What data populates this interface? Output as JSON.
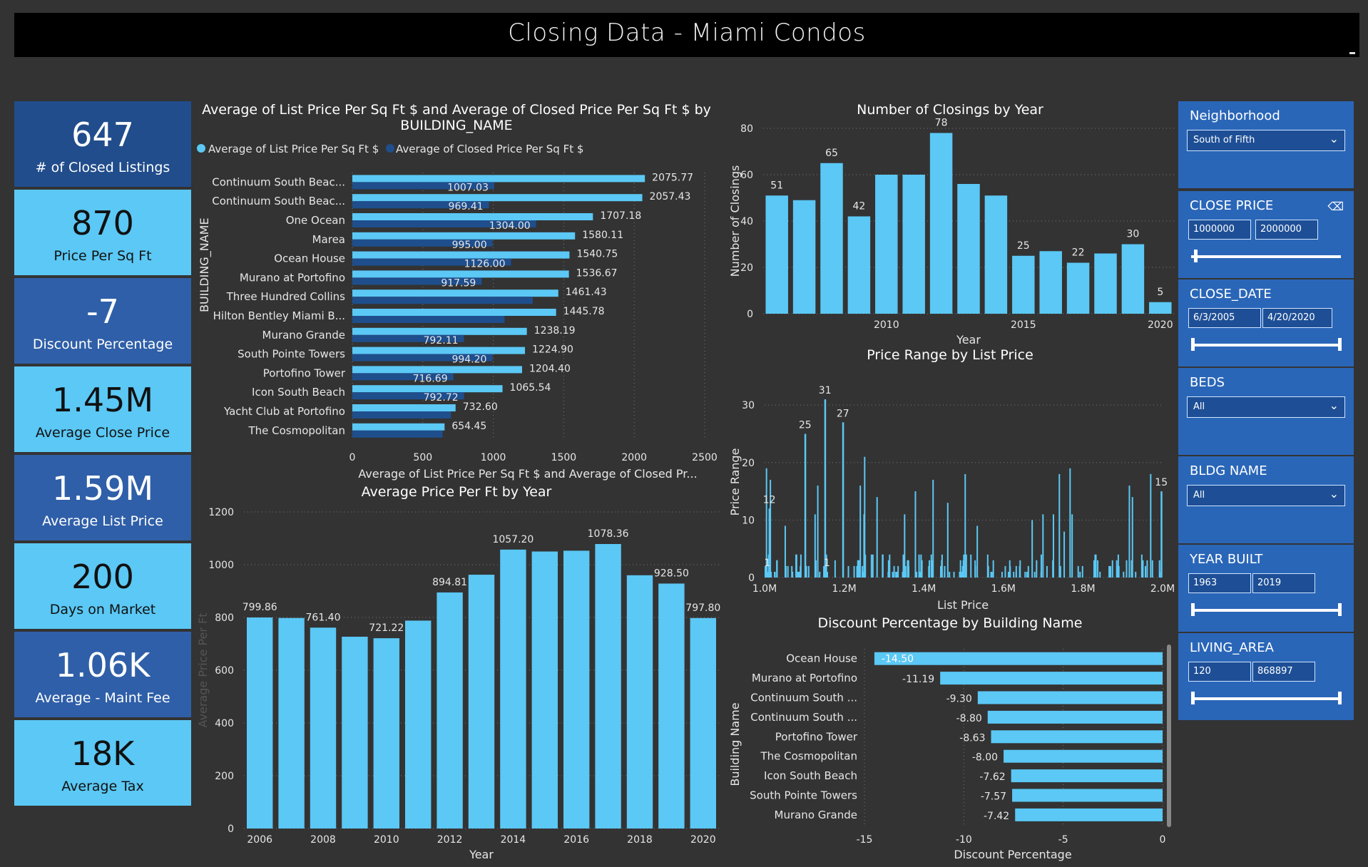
{
  "title": "Closing Data - Miami Condos",
  "kpis": [
    {
      "value": "647",
      "label": "# of Closed Listings",
      "color": "#214d8c"
    },
    {
      "value": "870",
      "label": "Price Per Sq Ft",
      "color": "#5bc8f5"
    },
    {
      "value": "-7",
      "label": "Discount Percentage",
      "color": "#2f5fa8"
    },
    {
      "value": "1.45M",
      "label": "Average Close Price",
      "color": "#5bc8f5"
    },
    {
      "value": "1.59M",
      "label": "Average List Price",
      "color": "#2f5fa8"
    },
    {
      "value": "200",
      "label": "Days on Market",
      "color": "#5bc8f5"
    },
    {
      "value": "1.06K",
      "label": "Average - Maint Fee",
      "color": "#2f5fa8"
    },
    {
      "value": "18K",
      "label": "Average Tax",
      "color": "#5bc8f5"
    }
  ],
  "slicers": {
    "neighborhood": {
      "title": "Neighborhood",
      "value": "South of Fifth"
    },
    "close_price": {
      "title": "CLOSE PRICE",
      "min": "1000000",
      "max": "2000000"
    },
    "close_date": {
      "title": "CLOSE_DATE",
      "min": "6/3/2005",
      "max": "4/20/2020"
    },
    "beds": {
      "title": "BEDS",
      "value": "All"
    },
    "bldg_name": {
      "title": "BLDG NAME",
      "value": "All"
    },
    "year_built": {
      "title": "YEAR BUILT",
      "min": "1963",
      "max": "2019"
    },
    "living_area": {
      "title": "LIVING_AREA",
      "min": "120",
      "max": "868897"
    }
  },
  "chart_data": [
    {
      "id": "price_per_sqft_by_building",
      "type": "bar",
      "orientation": "horizontal",
      "title": "Average of List Price Per Sq Ft $ and Average of Closed Price Per Sq Ft $ by BUILDING_NAME",
      "xlabel": "Average of List Price Per Sq Ft $ and Average of Closed Pr...",
      "ylabel": "BUILDING_NAME",
      "xlim": [
        0,
        2500
      ],
      "xticks": [
        "0",
        "500",
        "1000",
        "1500",
        "2000",
        "2500"
      ],
      "categories": [
        "Continuum South Beac...",
        "Continuum South Beac...",
        "One Ocean",
        "Marea",
        "Ocean House",
        "Murano at Portofino",
        "Three Hundred Collins",
        "Hilton Bentley Miami B...",
        "Murano Grande",
        "South Pointe Towers",
        "Portofino Tower",
        "Icon South Beach",
        "Yacht Club at Portofino",
        "The Cosmopolitan"
      ],
      "series": [
        {
          "name": "Average of List Price Per Sq Ft $",
          "color": "#5bc8f5",
          "values": [
            2075.77,
            2057.43,
            1707.18,
            1580.11,
            1540.75,
            1536.67,
            1461.43,
            1445.78,
            1238.19,
            1224.9,
            1204.4,
            1065.54,
            732.6,
            654.45
          ],
          "labels": [
            "2075.77",
            "2057.43",
            "1707.18",
            "1580.11",
            "1540.75",
            "1536.67",
            "1461.43",
            "1445.78",
            "1238.19",
            "1224.90",
            "1204.40",
            "1065.54",
            "732.60",
            "654.45"
          ]
        },
        {
          "name": "Average of Closed Price Per Sq Ft $",
          "color": "#1f4e8c",
          "values": [
            1007.03,
            969.41,
            1304.0,
            995.0,
            1126.0,
            917.59,
            1280,
            1080,
            792.11,
            994.2,
            716.69,
            792.72,
            700,
            640
          ],
          "labels": [
            "1007.03",
            "969.41",
            "1304.00",
            "995.00",
            "1126.00",
            "917.59",
            "",
            "",
            "792.11",
            "994.20",
            "716.69",
            "792.72",
            "",
            ""
          ]
        }
      ],
      "legend": "top-left"
    },
    {
      "id": "closings_by_year",
      "type": "bar",
      "title": "Number of Closings by Year",
      "xlabel": "Year",
      "ylabel": "Number of Closings",
      "ylim": [
        0,
        80
      ],
      "yticks": [
        "0",
        "20",
        "40",
        "60",
        "80"
      ],
      "xticks": [
        "2010",
        "2015",
        "2020"
      ],
      "x": [
        2006,
        2007,
        2008,
        2009,
        2010,
        2011,
        2012,
        2013,
        2014,
        2015,
        2016,
        2017,
        2018,
        2019,
        2020
      ],
      "values": [
        51,
        49,
        65,
        42,
        60,
        60,
        78,
        56,
        51,
        25,
        27,
        22,
        26,
        30,
        5
      ],
      "labels": [
        "51",
        "",
        "65",
        "42",
        "",
        "",
        "78",
        "",
        "",
        "25",
        "",
        "22",
        "",
        "30",
        "5"
      ]
    },
    {
      "id": "avg_price_per_ft_by_year",
      "type": "bar",
      "title": "Average Price Per Ft by Year",
      "xlabel": "Year",
      "ylabel": "Average Price Per Ft",
      "ylim": [
        0,
        1200
      ],
      "yticks": [
        "0",
        "200",
        "400",
        "600",
        "800",
        "1000",
        "1200"
      ],
      "xticks": [
        "2006",
        "2008",
        "2010",
        "2012",
        "2014",
        "2016",
        "2018",
        "2020"
      ],
      "x": [
        2006,
        2007,
        2008,
        2009,
        2010,
        2011,
        2012,
        2013,
        2014,
        2015,
        2016,
        2017,
        2018,
        2019,
        2020
      ],
      "values": [
        799.86,
        798,
        761.4,
        727,
        721.22,
        788,
        894.81,
        962,
        1057.2,
        1050,
        1053,
        1078.36,
        960,
        928.5,
        797.8
      ],
      "labels": [
        "799.86",
        "",
        "761.40",
        "",
        "721.22",
        "",
        "894.81",
        "",
        "1057.20",
        "",
        "",
        "1078.36",
        "",
        "928.50",
        "797.80"
      ]
    },
    {
      "id": "price_range_by_list_price",
      "type": "bar",
      "title": "Price Range by List Price",
      "xlabel": "List Price",
      "ylabel": "Price Range",
      "ylim": [
        0,
        33
      ],
      "yticks": [
        "0",
        "10",
        "20",
        "30"
      ],
      "xticks": [
        "1.0M",
        "1.2M",
        "1.4M",
        "1.6M",
        "1.8M",
        "2.0M"
      ],
      "xlim": [
        1000000,
        2000000
      ],
      "labeled_points": [
        {
          "x": 1010000,
          "value": 12,
          "label": "12"
        },
        {
          "x": 1100000,
          "value": 25,
          "label": "25"
        },
        {
          "x": 1150000,
          "value": 31,
          "label": "31"
        },
        {
          "x": 1195000,
          "value": 27,
          "label": "27"
        },
        {
          "x": 1995000,
          "value": 15,
          "label": "15"
        },
        {
          "x": 1005000,
          "value": 1,
          "label": "1"
        },
        {
          "x": 1155000,
          "value": 1,
          "label": "1"
        }
      ]
    },
    {
      "id": "discount_by_building",
      "type": "bar",
      "orientation": "horizontal",
      "title": "Discount Percentage by Building Name",
      "xlabel": "Discount Percentage",
      "ylabel": "Building Name",
      "xlim": [
        -15,
        0
      ],
      "xticks": [
        "-15",
        "-10",
        "-5",
        "0"
      ],
      "categories": [
        "Ocean House",
        "Murano at Portofino",
        "Continuum South ...",
        "Continuum South ...",
        "Portofino Tower",
        "The Cosmopolitan",
        "Icon South Beach",
        "South Pointe Towers",
        "Murano Grande"
      ],
      "values": [
        -14.5,
        -11.19,
        -9.3,
        -8.8,
        -8.63,
        -8.0,
        -7.62,
        -7.57,
        -7.42
      ],
      "labels": [
        "-14.50",
        "-11.19",
        "-9.30",
        "-8.80",
        "-8.63",
        "-8.00",
        "-7.62",
        "-7.57",
        "-7.42"
      ]
    }
  ]
}
